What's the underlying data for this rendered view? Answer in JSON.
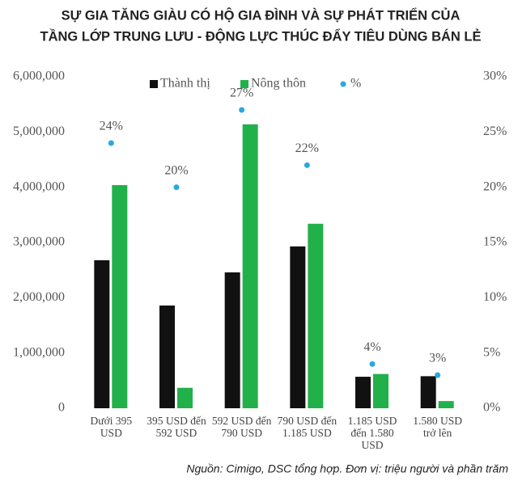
{
  "chart_data": {
    "type": "bar",
    "title": [
      "SỰ GIA TĂNG GIÀU CÓ HỘ GIA ĐÌNH VÀ SỰ PHÁT TRIỂN CỦA",
      "TẦNG LỚP TRUNG LƯU - ĐỘNG LỰC THÚC ĐẨY TIÊU DÙNG BÁN LẺ"
    ],
    "categories": [
      "Dưới 395 USD",
      "395 USD đến 592 USD",
      "592 USD đến 790 USD",
      "790 USD đến 1.185 USD",
      "1.185 USD đến 1.580 USD",
      "1.580 USD trở lên"
    ],
    "series": [
      {
        "name": "Thành thị",
        "color": "#111111",
        "values": [
          2680000,
          1860000,
          2460000,
          2930000,
          570000,
          580000
        ]
      },
      {
        "name": "Nông thôn",
        "color": "#22b04b",
        "values": [
          4040000,
          370000,
          5140000,
          3340000,
          620000,
          130000
        ]
      },
      {
        "name": "%",
        "color": "#29a8e0",
        "axis": "y2",
        "values": [
          24,
          20,
          27,
          22,
          4,
          3
        ],
        "value_labels": [
          "24%",
          "20%",
          "27%",
          "22%",
          "4%",
          "3%"
        ]
      }
    ],
    "ylim": [
      0,
      6000000
    ],
    "yticks": [
      0,
      {
        "value": 1000000,
        "label": "1,000,000"
      },
      {
        "value": 2000000,
        "label": "2,000,000"
      },
      {
        "value": 3000000,
        "label": "3,000,000"
      },
      {
        "value": 4000000,
        "label": "4,000,000"
      },
      {
        "value": 5000000,
        "label": "5,000,000"
      },
      {
        "value": 6000000,
        "label": "6,000,000"
      }
    ],
    "y2lim": [
      0,
      30
    ],
    "y2ticks": [
      {
        "value": 0,
        "label": "0%"
      },
      {
        "value": 5,
        "label": "5%"
      },
      {
        "value": 10,
        "label": "10%"
      },
      {
        "value": 15,
        "label": "15%"
      },
      {
        "value": 20,
        "label": "20%"
      },
      {
        "value": 25,
        "label": "25%"
      },
      {
        "value": 30,
        "label": "30%"
      }
    ],
    "grid": false,
    "source": "Nguồn: Cimigo, DSC tổng hợp. Đơn vị: triệu người và phần trăm"
  }
}
